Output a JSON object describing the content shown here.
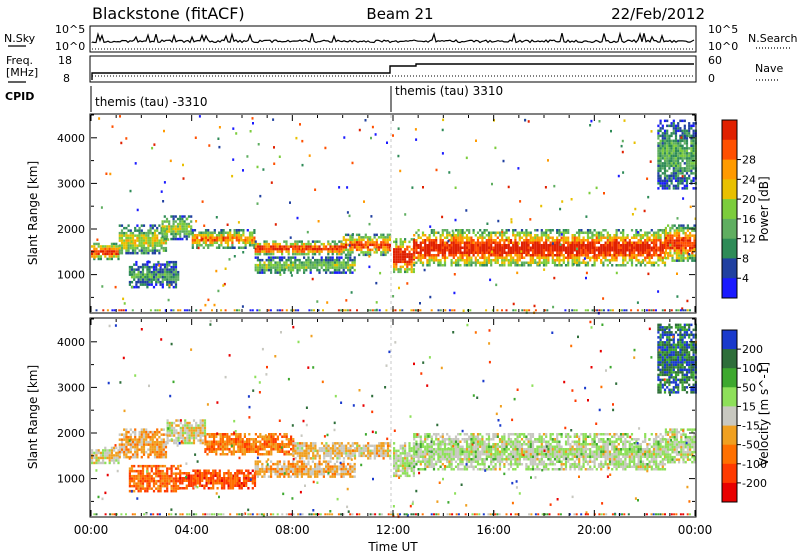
{
  "header": {
    "station": "Blackstone (fitACF)",
    "beam": "Beam 21",
    "date": "22/Feb/2012"
  },
  "noise_panel": {
    "left_label": "N.Sky",
    "right_label": "N.Search",
    "left_ticks": [
      "10^5",
      "10^0"
    ],
    "right_ticks": [
      "10^5",
      "10^0"
    ]
  },
  "freq_panel": {
    "left_label_1": "Freq.",
    "left_label_2": "[MHz]",
    "right_label": "Nave",
    "left_ticks": [
      "18",
      "8"
    ],
    "right_ticks": [
      "60",
      "0"
    ],
    "cpid_label": "CPID",
    "cpid_1": "themis (tau) -3310",
    "cpid_2": "themis (tau) 3310"
  },
  "x_axis": {
    "title": "Time UT",
    "ticks": [
      "00:00",
      "04:00",
      "08:00",
      "12:00",
      "16:00",
      "20:00",
      "00:00"
    ]
  },
  "chart_data": [
    {
      "type": "heatmap",
      "name": "power",
      "ylabel": "Slant Range [km]",
      "yticks": [
        1000,
        2000,
        3000,
        4000
      ],
      "ylim": [
        180,
        4500
      ],
      "xlim_hours": [
        0,
        24
      ],
      "colorbar": {
        "label": "Power [dB]",
        "ticks": [
          "4",
          "8",
          "12",
          "16",
          "20",
          "24",
          "28"
        ],
        "colors": [
          "#1a1aff",
          "#2040a0",
          "#2e8b57",
          "#5fae60",
          "#7ccd3c",
          "#e8c000",
          "#ff9a00",
          "#ff5000",
          "#e02000"
        ]
      },
      "echo_bands": [
        {
          "t0": 0.0,
          "t1": 1.1,
          "r0": 1350,
          "r1": 1700,
          "level": 0.85
        },
        {
          "t0": 1.1,
          "t1": 3.0,
          "r0": 1450,
          "r1": 2100,
          "level": 0.55
        },
        {
          "t0": 2.8,
          "t1": 4.0,
          "r0": 1800,
          "r1": 2300,
          "level": 0.5
        },
        {
          "t0": 4.0,
          "t1": 6.5,
          "r0": 1600,
          "r1": 2000,
          "level": 0.7
        },
        {
          "t0": 6.5,
          "t1": 10.0,
          "r0": 1450,
          "r1": 1750,
          "level": 0.85
        },
        {
          "t0": 10.0,
          "t1": 11.9,
          "r0": 1450,
          "r1": 1900,
          "level": 0.8
        },
        {
          "t0": 12.0,
          "t1": 12.8,
          "r0": 1050,
          "r1": 1800,
          "level": 0.95
        },
        {
          "t0": 12.8,
          "t1": 22.8,
          "r0": 1200,
          "r1": 2000,
          "level": 0.9
        },
        {
          "t0": 22.8,
          "t1": 24.0,
          "r0": 1300,
          "r1": 2100,
          "level": 0.85
        },
        {
          "t0": 1.5,
          "t1": 3.5,
          "r0": 700,
          "r1": 1300,
          "level": 0.3
        },
        {
          "t0": 6.5,
          "t1": 10.5,
          "r0": 1050,
          "r1": 1400,
          "level": 0.45
        },
        {
          "t0": 22.5,
          "t1": 24.0,
          "r0": 2900,
          "r1": 4400,
          "level": 0.35
        }
      ]
    },
    {
      "type": "heatmap",
      "name": "velocity",
      "ylabel": "Slant Range [km]",
      "yticks": [
        1000,
        2000,
        3000,
        4000
      ],
      "ylim": [
        180,
        4500
      ],
      "xlim_hours": [
        0,
        24
      ],
      "colorbar": {
        "label": "Velocity [m s^-1]",
        "ticks": [
          "200",
          "100",
          "50",
          "15",
          "-15",
          "-50",
          "-100",
          "-200"
        ],
        "colors": [
          "#1a3acc",
          "#2e6e3a",
          "#3da82e",
          "#8ee05a",
          "#c8c8c0",
          "#f0a020",
          "#ff7000",
          "#ff3a00",
          "#e80000"
        ]
      },
      "echo_bands": [
        {
          "t0": 0.0,
          "t1": 1.1,
          "r0": 1350,
          "r1": 1700,
          "level": 0.5
        },
        {
          "t0": 1.1,
          "t1": 3.0,
          "r0": 1450,
          "r1": 2100,
          "level": 0.6
        },
        {
          "t0": 3.0,
          "t1": 4.5,
          "r0": 1800,
          "r1": 2300,
          "level": 0.5
        },
        {
          "t0": 4.5,
          "t1": 8.0,
          "r0": 1550,
          "r1": 2000,
          "level": 0.7
        },
        {
          "t0": 8.0,
          "t1": 11.9,
          "r0": 1450,
          "r1": 1800,
          "level": 0.55
        },
        {
          "t0": 12.0,
          "t1": 12.8,
          "r0": 1050,
          "r1": 1800,
          "level": 0.45
        },
        {
          "t0": 12.8,
          "t1": 22.8,
          "r0": 1200,
          "r1": 2000,
          "level": 0.45
        },
        {
          "t0": 22.8,
          "t1": 24.0,
          "r0": 1350,
          "r1": 2100,
          "level": 0.45
        },
        {
          "t0": 1.5,
          "t1": 3.5,
          "r0": 700,
          "r1": 1300,
          "level": 0.75
        },
        {
          "t0": 3.5,
          "t1": 6.5,
          "r0": 800,
          "r1": 1200,
          "level": 0.8
        },
        {
          "t0": 6.5,
          "t1": 10.5,
          "r0": 1050,
          "r1": 1400,
          "level": 0.6
        },
        {
          "t0": 22.5,
          "t1": 24.0,
          "r0": 2900,
          "r1": 4400,
          "level": 0.15
        }
      ]
    }
  ]
}
